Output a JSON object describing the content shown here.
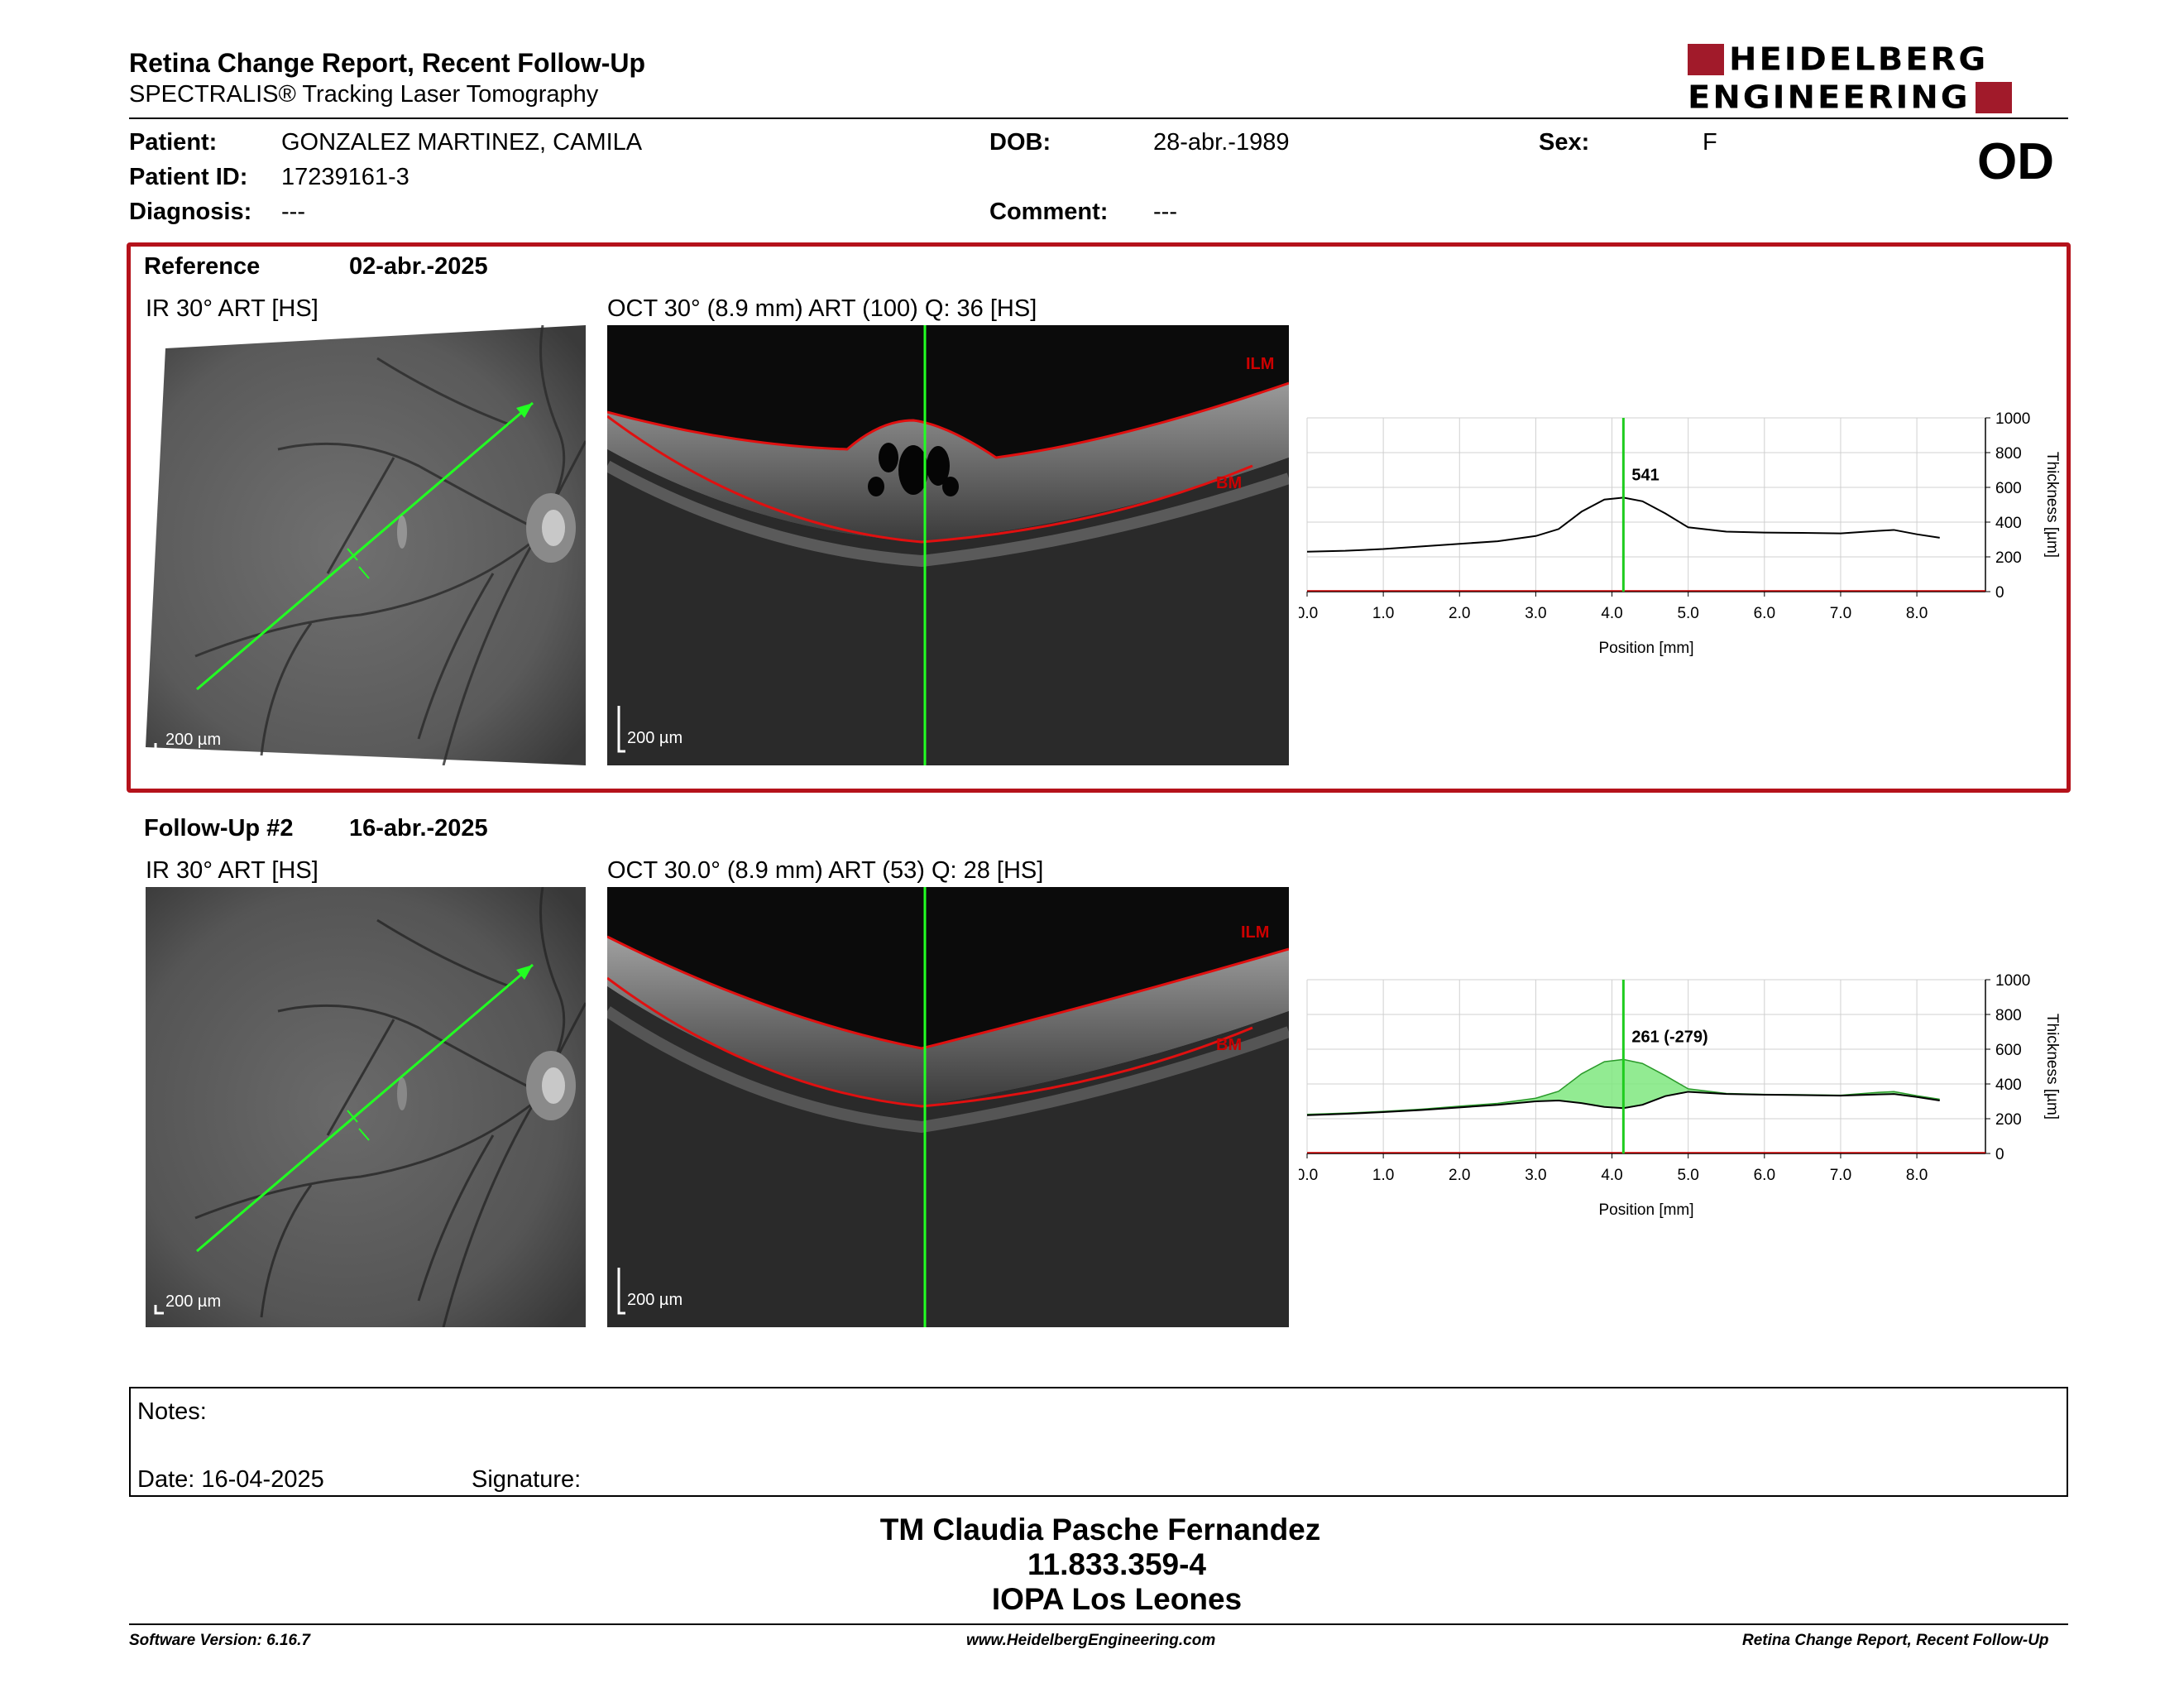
{
  "header": {
    "title": "Retina Change Report, Recent Follow-Up",
    "subtitle": "SPECTRALIS® Tracking Laser Tomography",
    "logo_line1": "HEIDELBERG",
    "logo_line2": "ENGINEERING"
  },
  "patient": {
    "patient_label": "Patient:",
    "patient_value": "GONZALEZ MARTINEZ, CAMILA",
    "id_label": "Patient ID:",
    "id_value": "17239161-3",
    "diagnosis_label": "Diagnosis:",
    "diagnosis_value": "---",
    "dob_label": "DOB:",
    "dob_value": "28-abr.-1989",
    "comment_label": "Comment:",
    "comment_value": "---",
    "sex_label": "Sex:",
    "sex_value": "F",
    "eye": "OD"
  },
  "reference": {
    "label": "Reference",
    "date": "02-abr.-2025",
    "ir_label": "IR 30° ART [HS]",
    "oct_label": "OCT 30° (8.9 mm) ART (100) Q: 36 [HS]",
    "scale": "200 µm",
    "ilm": "ILM",
    "bm": "BM"
  },
  "followup": {
    "label": "Follow-Up #2",
    "date": "16-abr.-2025",
    "ir_label": "IR 30° ART [HS]",
    "oct_label": "OCT 30.0° (8.9 mm) ART (53) Q: 28 [HS]",
    "scale": "200 µm",
    "ilm": "ILM",
    "bm": "BM"
  },
  "chart_data": [
    {
      "type": "line",
      "xlabel": "Position [mm]",
      "ylabel": "Thickness [µm]",
      "xlim": [
        0,
        8.9
      ],
      "ylim": [
        0,
        1000
      ],
      "xticks": [
        "0.0",
        "1.0",
        "2.0",
        "3.0",
        "4.0",
        "5.0",
        "6.0",
        "7.0",
        "8.0"
      ],
      "yticks": [
        "0",
        "200",
        "400",
        "600",
        "800",
        "1000"
      ],
      "cursor_x": 4.15,
      "annotation": "541",
      "series": [
        {
          "x": [
            0,
            0.5,
            1.0,
            1.5,
            2.0,
            2.5,
            3.0,
            3.3,
            3.6,
            3.9,
            4.15,
            4.4,
            4.7,
            5.0,
            5.5,
            6.0,
            6.5,
            7.0,
            7.5,
            7.7,
            8.0,
            8.3
          ],
          "y": [
            230,
            235,
            245,
            260,
            275,
            290,
            320,
            360,
            460,
            530,
            541,
            520,
            450,
            370,
            345,
            340,
            338,
            335,
            350,
            355,
            330,
            310
          ]
        }
      ]
    },
    {
      "type": "area",
      "xlabel": "Position [mm]",
      "ylabel": "Thickness [µm]",
      "xlim": [
        0,
        8.9
      ],
      "ylim": [
        0,
        1000
      ],
      "xticks": [
        "0.0",
        "1.0",
        "2.0",
        "3.0",
        "4.0",
        "5.0",
        "6.0",
        "7.0",
        "8.0"
      ],
      "yticks": [
        "0",
        "200",
        "400",
        "600",
        "800",
        "1000"
      ],
      "cursor_x": 4.15,
      "annotation": "261 (-279)",
      "series": [
        {
          "x": [
            0,
            0.5,
            1.0,
            1.5,
            2.0,
            2.5,
            3.0,
            3.3,
            3.6,
            3.9,
            4.15,
            4.4,
            4.7,
            5.0,
            5.5,
            6.0,
            6.5,
            7.0,
            7.5,
            7.7,
            8.0,
            8.3
          ],
          "y": [
            225,
            232,
            242,
            255,
            272,
            288,
            318,
            358,
            458,
            528,
            541,
            518,
            448,
            372,
            345,
            340,
            338,
            335,
            352,
            356,
            332,
            312
          ]
        },
        {
          "x": [
            0,
            0.5,
            1.0,
            1.5,
            2.0,
            2.5,
            3.0,
            3.3,
            3.6,
            3.9,
            4.15,
            4.4,
            4.7,
            5.0,
            5.5,
            6.0,
            6.5,
            7.0,
            7.5,
            7.7,
            8.0,
            8.3
          ],
          "y": [
            220,
            228,
            238,
            250,
            265,
            280,
            300,
            305,
            290,
            268,
            261,
            280,
            330,
            355,
            342,
            338,
            336,
            333,
            340,
            342,
            325,
            305
          ]
        }
      ]
    }
  ],
  "notes": {
    "notes_label": "Notes:",
    "date_label": "Date: 16-04-2025",
    "signature_label": "Signature:"
  },
  "footer": {
    "line1": "TM Claudia Pasche Fernandez",
    "line2": "11.833.359-4",
    "line3": "IOPA Los Leones",
    "software": "Software Version: 6.16.7",
    "website": "www.HeidelbergEngineering.com",
    "report_name": "Retina Change Report, Recent Follow-Up"
  }
}
